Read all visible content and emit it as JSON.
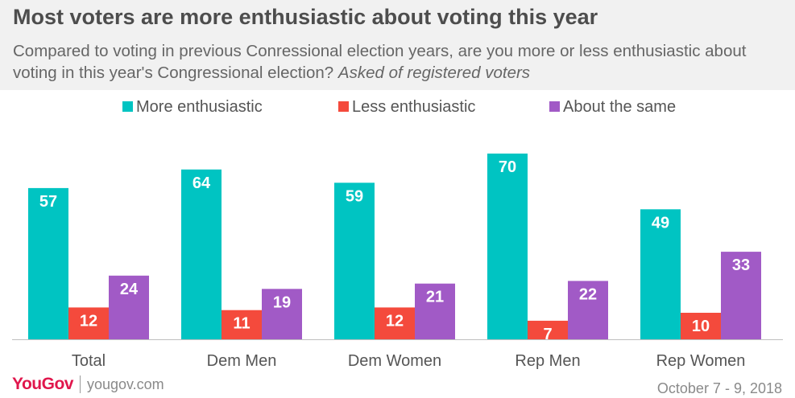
{
  "header": {
    "title": "Most voters are more enthusiastic about voting this year",
    "subtitle": "Compared to voting in previous Conressional election years, are you more or less enthusiastic about voting in this year's Congressional election?",
    "subtitle_note": "Asked of registered voters"
  },
  "footer": {
    "logo": "YouGov",
    "site": "yougov.com",
    "date": "October 7 - 9, 2018"
  },
  "chart_data": {
    "type": "bar",
    "categories": [
      "Total",
      "Dem Men",
      "Dem Women",
      "Rep Men",
      "Rep Women"
    ],
    "series": [
      {
        "name": "More enthusiastic",
        "color": "#00c4c2",
        "values": [
          57,
          64,
          59,
          70,
          49
        ]
      },
      {
        "name": "Less enthusiastic",
        "color": "#f44a3c",
        "values": [
          12,
          11,
          12,
          7,
          10
        ]
      },
      {
        "name": "About the same",
        "color": "#a15ac6",
        "values": [
          24,
          19,
          21,
          22,
          33
        ]
      }
    ],
    "ylim": [
      0,
      70
    ],
    "grid": false,
    "legend": "top-center",
    "data_labels": true
  }
}
